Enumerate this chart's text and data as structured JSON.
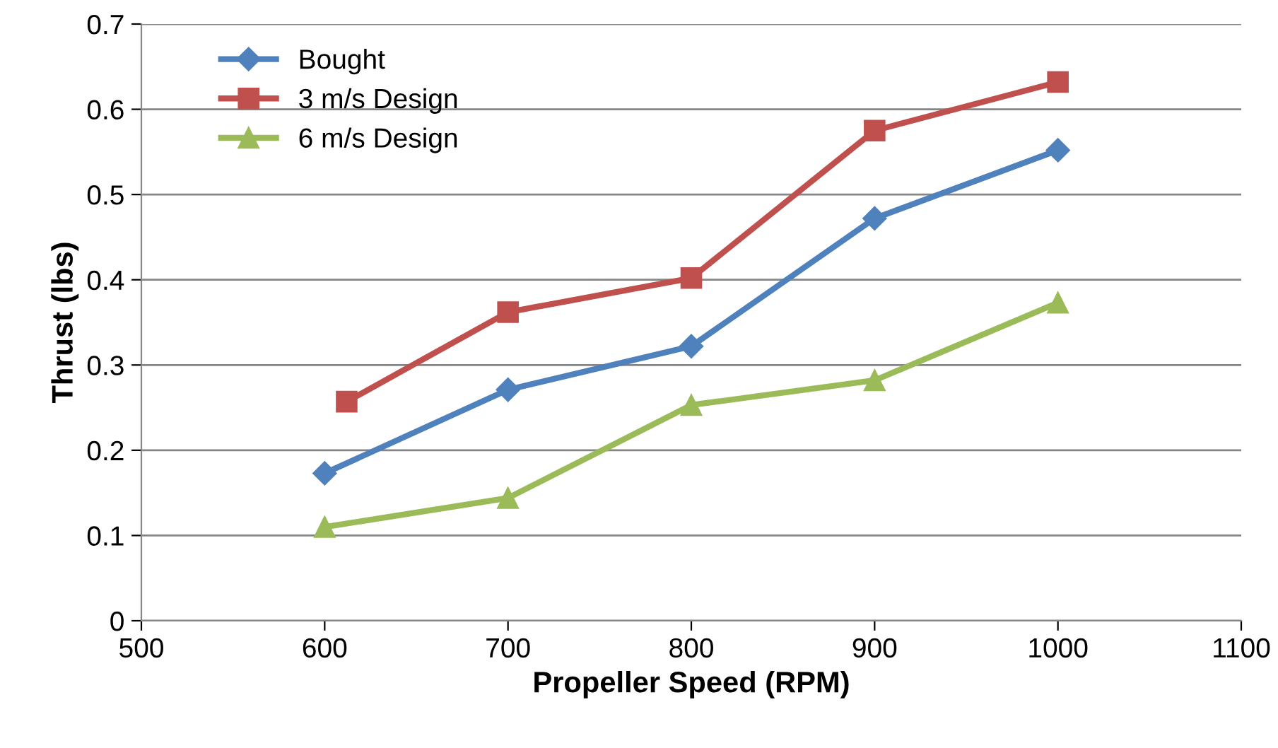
{
  "chart_data": {
    "type": "line",
    "xlabel": "Propeller Speed (RPM)",
    "ylabel": "Thrust (lbs)",
    "xlim": [
      500,
      1100
    ],
    "xticks": [
      500,
      600,
      700,
      800,
      900,
      1000,
      1100
    ],
    "ylim": [
      0,
      0.7
    ],
    "yticks": [
      0,
      0.1,
      0.2,
      0.3,
      0.4,
      0.5,
      0.6,
      0.7
    ],
    "grid": "y",
    "legend": "top left",
    "line_style": "solid",
    "series": [
      {
        "name": "Bought",
        "color": "#4f81bd",
        "marker": "diamond",
        "x": [
          600,
          700,
          800,
          900,
          1000
        ],
        "values": [
          0.173,
          0.271,
          0.322,
          0.472,
          0.552
        ]
      },
      {
        "name": "3 m/s Design",
        "color": "#c0504d",
        "marker": "square",
        "x": [
          612,
          700,
          800,
          900,
          1000
        ],
        "values": [
          0.257,
          0.362,
          0.402,
          0.575,
          0.632
        ]
      },
      {
        "name": "6 m/s Design",
        "color": "#9bbb59",
        "marker": "triangle",
        "x": [
          600,
          700,
          800,
          900,
          1000
        ],
        "values": [
          0.11,
          0.144,
          0.253,
          0.282,
          0.373
        ]
      }
    ]
  }
}
